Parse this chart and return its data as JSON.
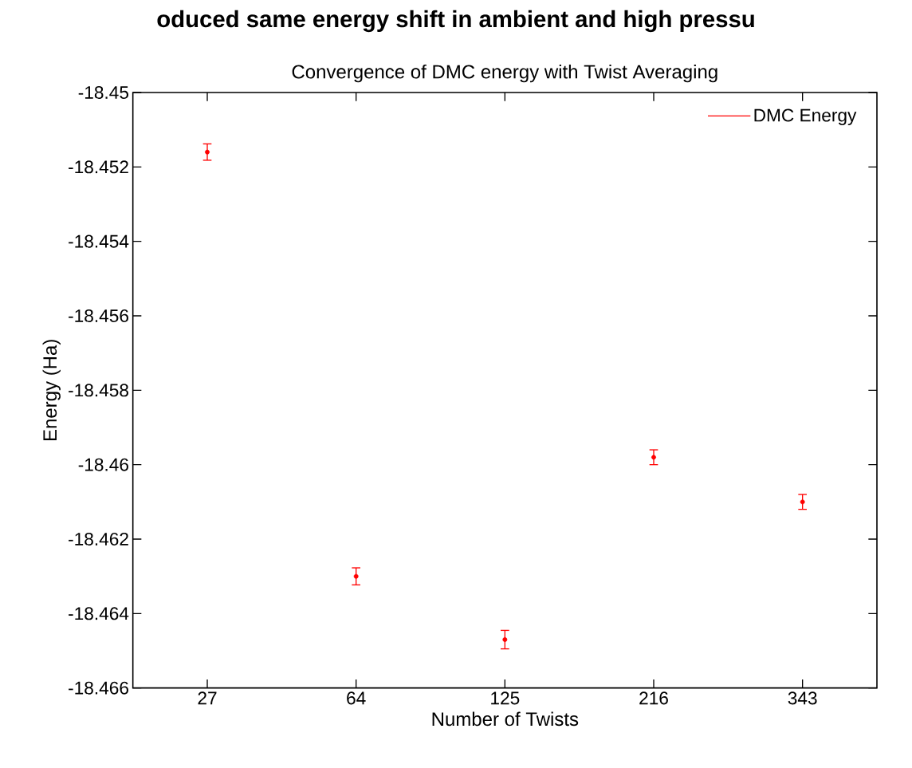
{
  "chart_data": {
    "type": "scatter",
    "title": "Convergence of DMC energy with Twist Averaging",
    "xlabel": "Number of Twists",
    "ylabel": "Energy (Ha)",
    "annotations": [
      "oduced same energy shift in ambient and high pressu"
    ],
    "categories": [
      "27",
      "64",
      "125",
      "216",
      "343"
    ],
    "series": [
      {
        "name": "DMC Energy",
        "color": "#ff0000",
        "values": [
          -18.4516,
          -18.463,
          -18.4647,
          -18.4598,
          -18.461
        ],
        "errors": [
          0.00022,
          0.00023,
          0.00025,
          0.0002,
          0.0002
        ]
      }
    ],
    "ylim": [
      -18.466,
      -18.45
    ],
    "yticks": [
      -18.466,
      -18.464,
      -18.462,
      -18.46,
      -18.458,
      -18.456,
      -18.454,
      -18.452,
      -18.45
    ],
    "legend": "top right"
  }
}
